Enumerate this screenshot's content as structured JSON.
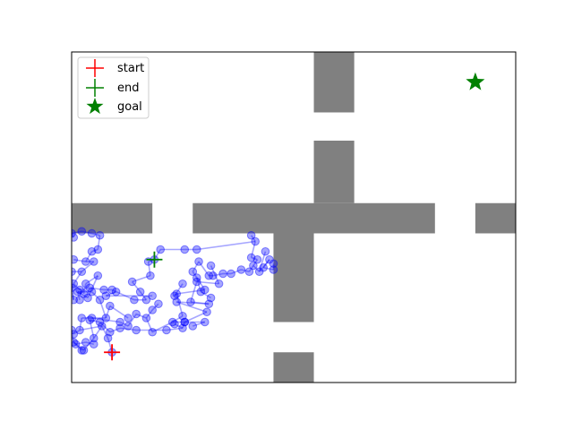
{
  "chart_data": {
    "type": "scatter",
    "title": "",
    "xlabel": "",
    "ylabel": "",
    "xlim": [
      0,
      11
    ],
    "ylim": [
      0,
      8.2
    ],
    "grid": false,
    "legend_placement": "upper-left",
    "legend": [
      {
        "label": "start",
        "marker": "plus",
        "color": "#ff0000"
      },
      {
        "label": "end",
        "marker": "plus",
        "color": "#008000"
      },
      {
        "label": "goal",
        "marker": "star",
        "color": "#008000"
      }
    ],
    "start": [
      1.0,
      0.75
    ],
    "end": [
      2.05,
      3.05
    ],
    "goal": [
      10.0,
      7.45
    ],
    "obstacles": [
      {
        "x": 0.0,
        "y": 3.7,
        "w": 2.0,
        "h": 0.75
      },
      {
        "x": 3.0,
        "y": 3.7,
        "w": 6.0,
        "h": 0.75
      },
      {
        "x": 10.0,
        "y": 3.7,
        "w": 1.0,
        "h": 0.75
      },
      {
        "x": 6.0,
        "y": 6.7,
        "w": 1.0,
        "h": 1.5
      },
      {
        "x": 6.0,
        "y": 4.45,
        "w": 1.0,
        "h": 1.55
      },
      {
        "x": 5.0,
        "y": 1.5,
        "w": 1.0,
        "h": 2.2
      },
      {
        "x": 5.0,
        "y": 0.0,
        "w": 1.0,
        "h": 0.75
      }
    ],
    "tree_points": [
      [
        1.0,
        0.75
      ],
      [
        0.9,
        1.1
      ],
      [
        0.75,
        1.4
      ],
      [
        0.55,
        1.1
      ],
      [
        0.3,
        0.8
      ],
      [
        0.2,
        1.3
      ],
      [
        0.05,
        1.2
      ],
      [
        0.25,
        1.6
      ],
      [
        0.5,
        1.6
      ],
      [
        0.85,
        1.6
      ],
      [
        0.95,
        1.9
      ],
      [
        1.2,
        1.5
      ],
      [
        1.4,
        1.4
      ],
      [
        1.6,
        1.7
      ],
      [
        1.85,
        1.6
      ],
      [
        2.0,
        1.25
      ],
      [
        2.0,
        1.8
      ],
      [
        2.15,
        1.95
      ],
      [
        2.5,
        1.5
      ],
      [
        2.8,
        1.5
      ],
      [
        3.35,
        1.75
      ],
      [
        2.75,
        1.65
      ],
      [
        2.6,
        2.2
      ],
      [
        3.3,
        2.3
      ],
      [
        3.1,
        2.6
      ],
      [
        3.2,
        2.25
      ],
      [
        3.45,
        2.1
      ],
      [
        3.0,
        2.75
      ],
      [
        3.15,
        3.0
      ],
      [
        3.4,
        2.65
      ],
      [
        3.5,
        2.65
      ],
      [
        3.75,
        2.7
      ],
      [
        3.95,
        2.7
      ],
      [
        4.2,
        2.8
      ],
      [
        4.4,
        2.75
      ],
      [
        4.5,
        2.9
      ],
      [
        4.65,
        2.75
      ],
      [
        4.8,
        3.25
      ],
      [
        4.6,
        3.05
      ],
      [
        4.45,
        3.1
      ],
      [
        4.9,
        3.05
      ],
      [
        4.75,
        2.85
      ],
      [
        5.0,
        2.8
      ],
      [
        5.0,
        2.95
      ],
      [
        4.55,
        3.5
      ],
      [
        4.45,
        3.65
      ],
      [
        3.1,
        3.3
      ],
      [
        2.8,
        3.3
      ],
      [
        2.2,
        3.3
      ],
      [
        2.05,
        3.05
      ],
      [
        1.9,
        3.0
      ],
      [
        1.95,
        2.65
      ],
      [
        1.5,
        2.5
      ],
      [
        1.7,
        2.25
      ],
      [
        1.85,
        2.05
      ],
      [
        1.55,
        2.05
      ],
      [
        1.0,
        2.3
      ],
      [
        0.8,
        2.3
      ],
      [
        0.45,
        2.35
      ],
      [
        0.2,
        2.3
      ],
      [
        0.05,
        2.45
      ],
      [
        0.25,
        2.75
      ],
      [
        0.55,
        3.0
      ],
      [
        0.35,
        3.0
      ],
      [
        0.05,
        3.05
      ],
      [
        0.5,
        3.25
      ],
      [
        0.65,
        3.3
      ],
      [
        0.7,
        3.65
      ],
      [
        0.5,
        3.7
      ],
      [
        0.25,
        3.75
      ],
      [
        0.0,
        3.7
      ],
      [
        0.05,
        3.6
      ],
      [
        0.0,
        2.75
      ],
      [
        0.05,
        2.05
      ],
      [
        0.0,
        2.35
      ],
      [
        0.05,
        1.0
      ],
      [
        0.0,
        1.3
      ],
      [
        0.1,
        0.95
      ],
      [
        0.35,
        1.0
      ],
      [
        0.55,
        0.95
      ],
      [
        0.25,
        0.8
      ],
      [
        0.45,
        1.55
      ],
      [
        0.7,
        1.5
      ],
      [
        0.95,
        1.25
      ],
      [
        1.2,
        1.35
      ],
      [
        1.6,
        1.3
      ],
      [
        2.35,
        1.3
      ],
      [
        2.75,
        1.35
      ],
      [
        2.8,
        1.5
      ],
      [
        2.55,
        1.45
      ],
      [
        3.3,
        1.5
      ],
      [
        3.0,
        1.4
      ],
      [
        2.6,
        2.0
      ],
      [
        3.4,
        1.95
      ],
      [
        2.95,
        2.0
      ],
      [
        3.1,
        2.5
      ],
      [
        3.65,
        2.45
      ],
      [
        3.45,
        2.9
      ],
      [
        0.7,
        2.05
      ],
      [
        0.5,
        2.25
      ],
      [
        0.15,
        2.25
      ],
      [
        0.2,
        2.05
      ],
      [
        0.4,
        2.1
      ],
      [
        0.65,
        2.65
      ],
      [
        0.35,
        2.45
      ],
      [
        0.3,
        2.2
      ],
      [
        1.1,
        2.25
      ],
      [
        0.85,
        2.15
      ],
      [
        1.4,
        1.6
      ],
      [
        2.55,
        2.15
      ],
      [
        2.75,
        2.45
      ],
      [
        2.0,
        2.15
      ]
    ],
    "tree_edges": [
      [
        0,
        1
      ],
      [
        1,
        2
      ],
      [
        2,
        3
      ],
      [
        3,
        4
      ],
      [
        2,
        5
      ],
      [
        5,
        6
      ],
      [
        5,
        7
      ],
      [
        7,
        8
      ],
      [
        8,
        9
      ],
      [
        9,
        10
      ],
      [
        8,
        11
      ],
      [
        11,
        12
      ],
      [
        12,
        13
      ],
      [
        13,
        14
      ],
      [
        14,
        15
      ],
      [
        14,
        16
      ],
      [
        16,
        17
      ],
      [
        15,
        18
      ],
      [
        18,
        19
      ],
      [
        19,
        20
      ],
      [
        18,
        21
      ],
      [
        21,
        22
      ],
      [
        22,
        23
      ],
      [
        23,
        24
      ],
      [
        24,
        25
      ],
      [
        25,
        26
      ],
      [
        24,
        27
      ],
      [
        27,
        28
      ],
      [
        28,
        29
      ],
      [
        29,
        30
      ],
      [
        30,
        31
      ],
      [
        31,
        32
      ],
      [
        32,
        33
      ],
      [
        33,
        34
      ],
      [
        34,
        35
      ],
      [
        35,
        36
      ],
      [
        36,
        37
      ],
      [
        35,
        38
      ],
      [
        38,
        39
      ],
      [
        36,
        40
      ],
      [
        40,
        41
      ],
      [
        41,
        42
      ],
      [
        42,
        43
      ],
      [
        39,
        44
      ],
      [
        44,
        45
      ],
      [
        44,
        46
      ],
      [
        46,
        47
      ],
      [
        47,
        48
      ],
      [
        48,
        49
      ],
      [
        49,
        50
      ],
      [
        50,
        51
      ],
      [
        51,
        52
      ],
      [
        52,
        53
      ],
      [
        53,
        54
      ],
      [
        54,
        55
      ],
      [
        55,
        56
      ],
      [
        56,
        57
      ],
      [
        57,
        58
      ],
      [
        58,
        59
      ],
      [
        59,
        60
      ],
      [
        60,
        61
      ],
      [
        61,
        62
      ],
      [
        62,
        63
      ],
      [
        63,
        64
      ],
      [
        63,
        65
      ],
      [
        65,
        66
      ],
      [
        66,
        67
      ],
      [
        67,
        68
      ],
      [
        68,
        69
      ],
      [
        69,
        70
      ],
      [
        70,
        71
      ],
      [
        61,
        72
      ],
      [
        72,
        73
      ],
      [
        73,
        74
      ],
      [
        4,
        75
      ],
      [
        75,
        76
      ],
      [
        75,
        77
      ],
      [
        77,
        78
      ],
      [
        78,
        79
      ],
      [
        77,
        80
      ],
      [
        3,
        81
      ],
      [
        81,
        82
      ],
      [
        82,
        83
      ],
      [
        83,
        84
      ],
      [
        84,
        85
      ],
      [
        85,
        86
      ],
      [
        86,
        87
      ],
      [
        87,
        88
      ],
      [
        87,
        89
      ],
      [
        88,
        90
      ],
      [
        90,
        91
      ],
      [
        20,
        92
      ],
      [
        92,
        93
      ],
      [
        93,
        94
      ],
      [
        94,
        95
      ],
      [
        95,
        96
      ],
      [
        96,
        97
      ],
      [
        9,
        98
      ],
      [
        98,
        99
      ],
      [
        99,
        100
      ],
      [
        100,
        101
      ],
      [
        100,
        102
      ],
      [
        102,
        103
      ],
      [
        103,
        104
      ],
      [
        104,
        105
      ],
      [
        106,
        107
      ],
      [
        10,
        108
      ],
      [
        22,
        109
      ],
      [
        109,
        110
      ],
      [
        107,
        111
      ]
    ]
  }
}
